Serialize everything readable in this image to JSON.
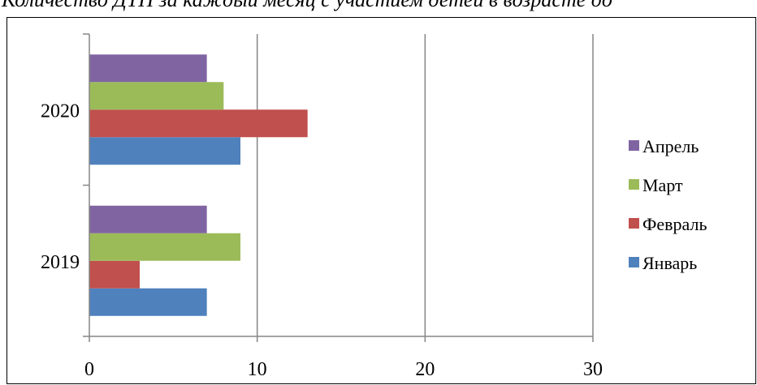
{
  "chart_data": {
    "type": "bar",
    "orientation": "horizontal",
    "title": "Количество ДТП за каждый месяц с участием детей в возрасте до",
    "categories": [
      "2019",
      "2020"
    ],
    "series": [
      {
        "name": "Январь",
        "values": [
          7,
          9
        ],
        "color": "#4f81bd"
      },
      {
        "name": "Февраль",
        "values": [
          3,
          13
        ],
        "color": "#c0504d"
      },
      {
        "name": "Март",
        "values": [
          9,
          8
        ],
        "color": "#9bbb59"
      },
      {
        "name": "Апрель",
        "values": [
          7,
          7
        ],
        "color": "#8064a2"
      }
    ],
    "xlim": [
      0,
      30
    ],
    "x_ticks": [
      "0",
      "10",
      "20",
      "30"
    ],
    "legend_order": [
      "Апрель",
      "Март",
      "Февраль",
      "Январь"
    ],
    "legend_position": "right",
    "grid": "vertical"
  }
}
